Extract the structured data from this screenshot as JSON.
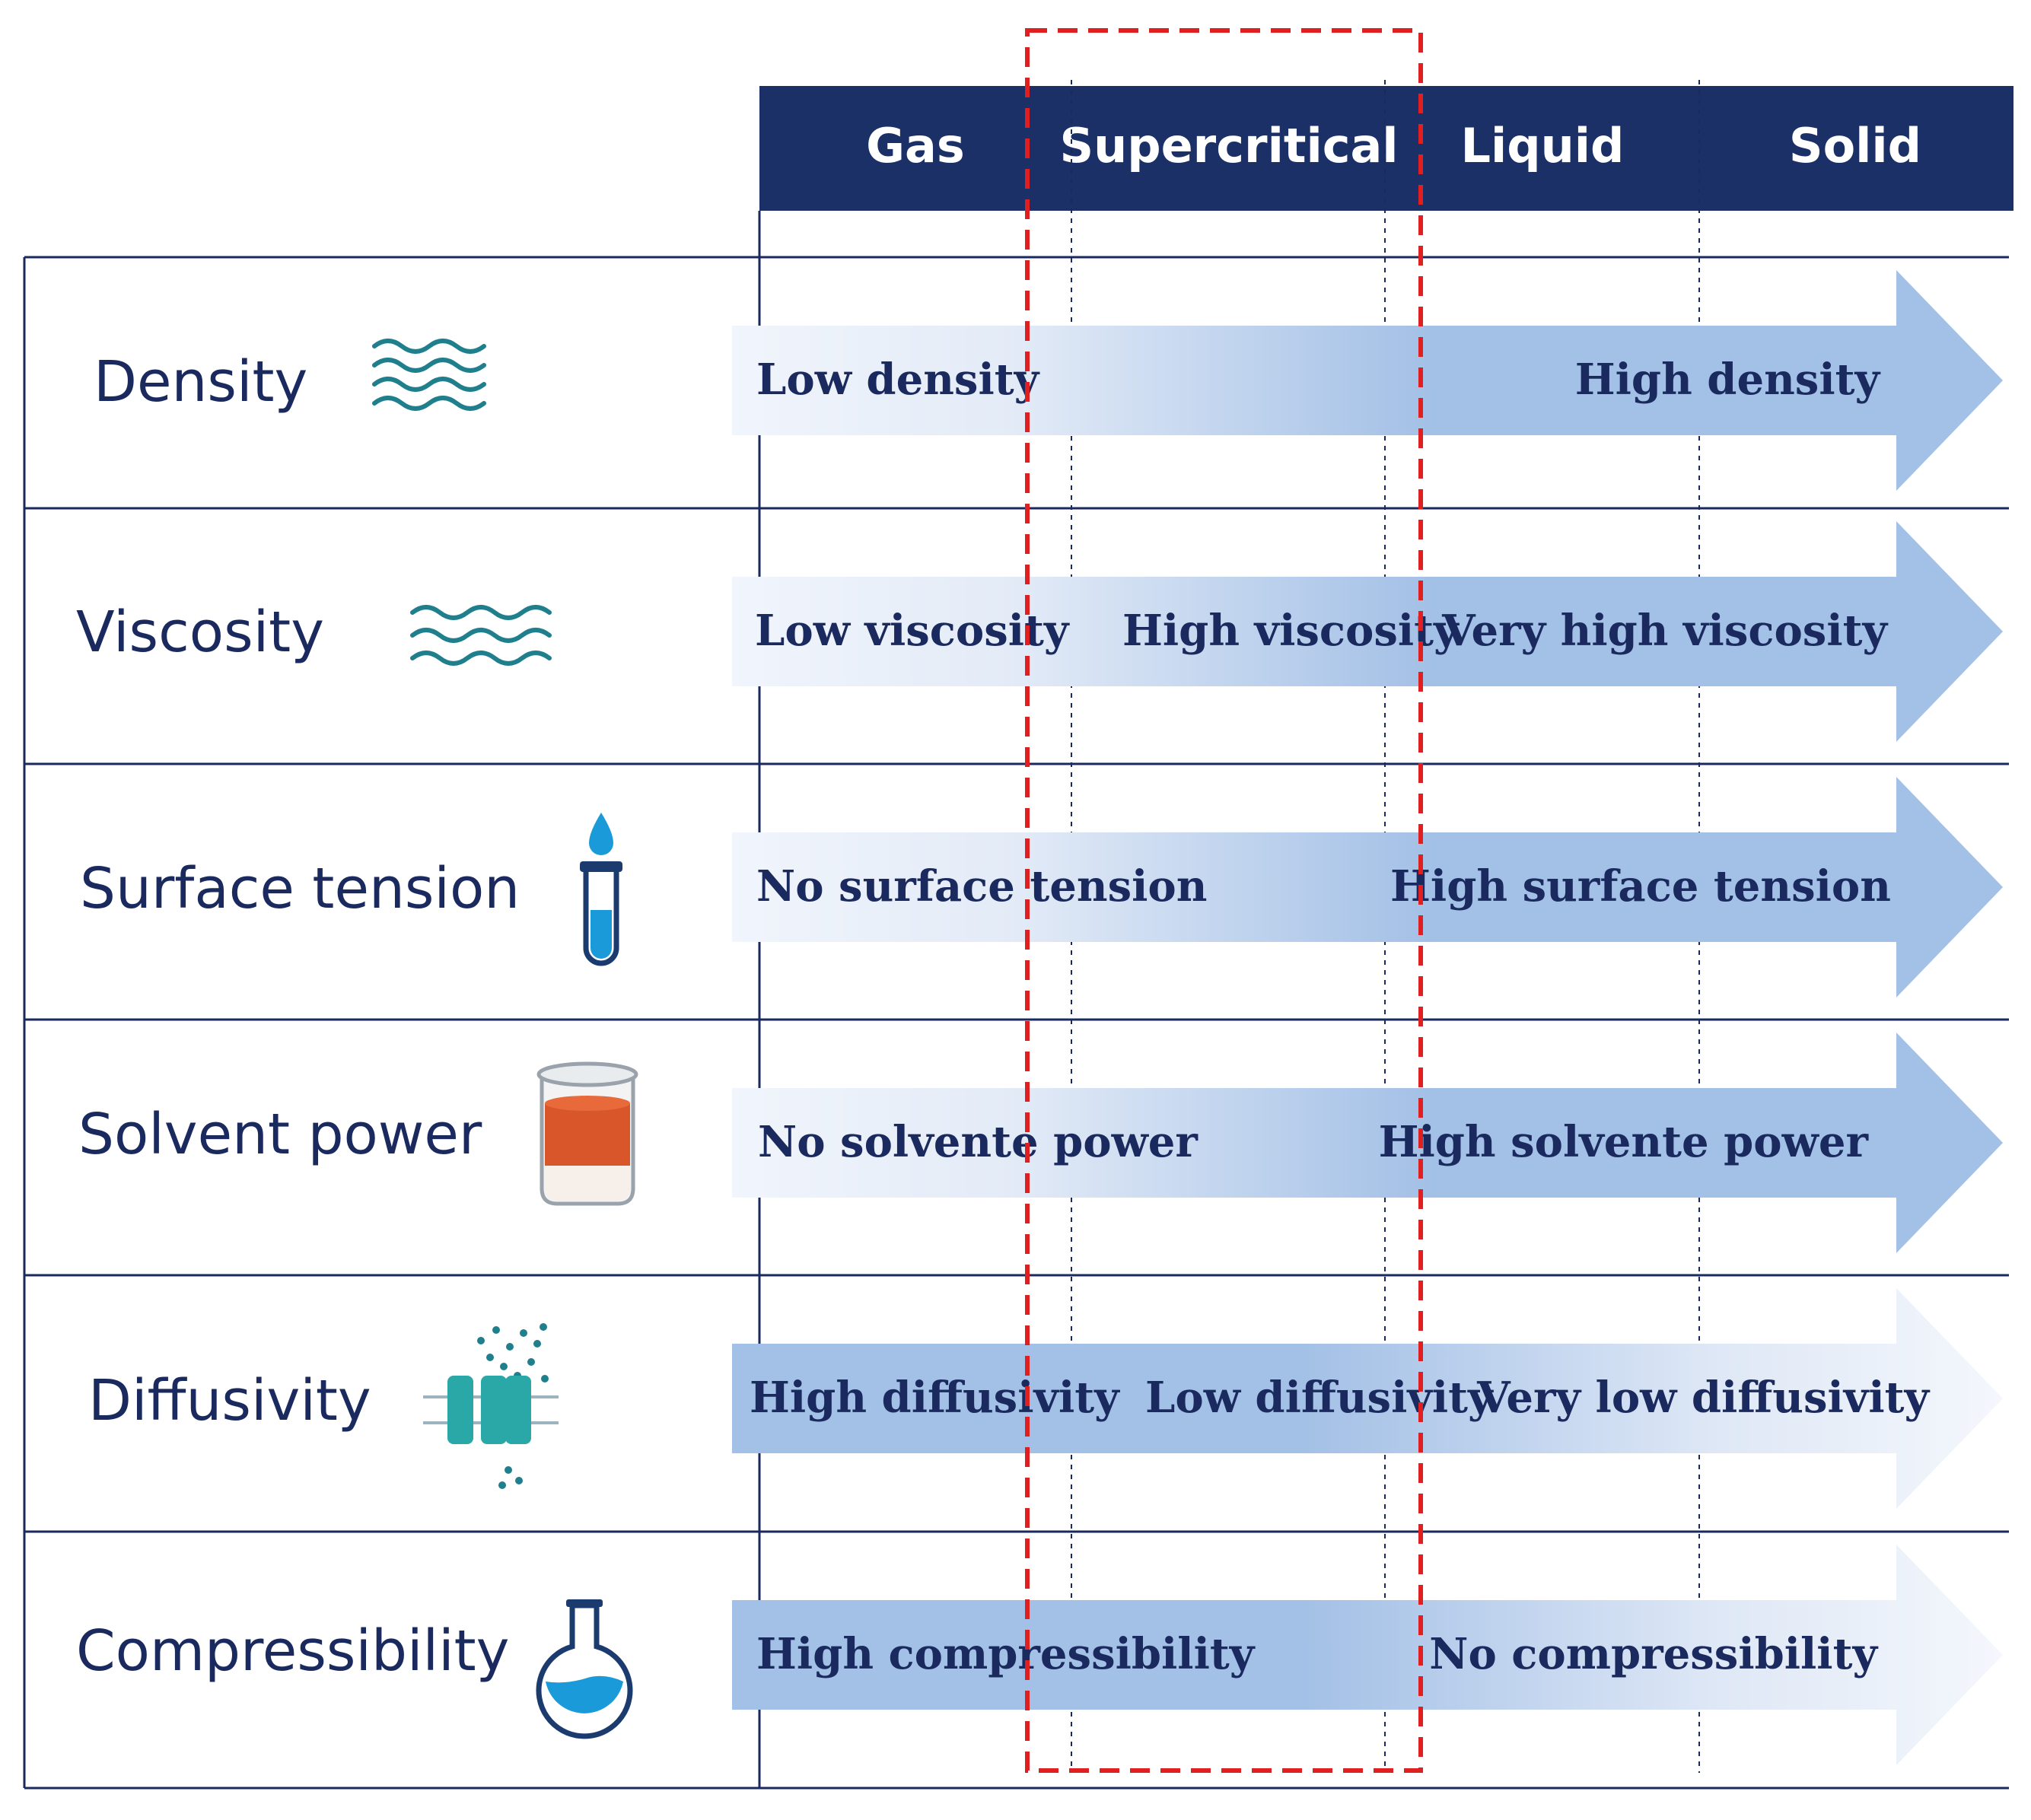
{
  "columns": [
    "Gas",
    "Supercritical",
    "Liquid",
    "Solid"
  ],
  "colors": {
    "header_bg": "#1c3068",
    "line": "#1b2a5e",
    "arrow_strong": "#a3c0e6",
    "arrow_light": "#eef3fb",
    "highlight": "#e02020",
    "icon_teal": "#1f7f8c",
    "icon_blue": "#1a9ad9"
  },
  "rows": [
    {
      "property": "Density",
      "icon": "waves-icon",
      "direction": "increasing",
      "labels": [
        "Low density",
        "High density"
      ]
    },
    {
      "property": "Viscosity",
      "icon": "waves-icon",
      "direction": "increasing",
      "labels": [
        "Low viscosity",
        "High viscosity",
        "Very high viscosity"
      ]
    },
    {
      "property": "Surface tension",
      "icon": "test-tube-icon",
      "direction": "increasing",
      "labels": [
        "No surface tension",
        "High surface tension"
      ]
    },
    {
      "property": "Solvent power",
      "icon": "beaker-icon",
      "direction": "increasing",
      "labels": [
        "No solvente power",
        "High solvente power"
      ]
    },
    {
      "property": "Diffusivity",
      "icon": "membrane-channel-icon",
      "direction": "decreasing",
      "labels": [
        "High diffusivity",
        "Low diffusivity",
        "Very low diffusivity"
      ]
    },
    {
      "property": "Compressibility",
      "icon": "flask-icon",
      "direction": "decreasing",
      "labels": [
        "High compressibility",
        "No compressibility"
      ]
    }
  ]
}
